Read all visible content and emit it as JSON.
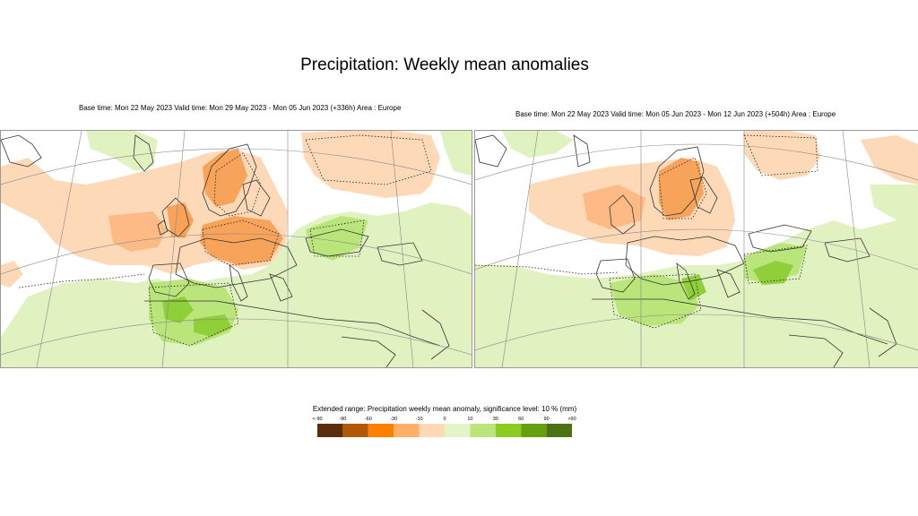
{
  "title": "Precipitation: Weekly mean anomalies",
  "maps": [
    {
      "subtitle": "Base time: Mon 22 May 2023 Valid time: Mon 29 May 2023 - Mon 05 Jun 2023 (+336h) Area : Europe"
    },
    {
      "subtitle": "Base time: Mon 22 May 2023 Valid time: Mon 05 Jun 2023 - Mon 12 Jun 2023 (+504h) Area : Europe"
    }
  ],
  "legend": {
    "title": "Extended range: Precipitation weekly mean anomaly, significance level: 10 % (mm)",
    "ticks": [
      "<-90",
      "-90",
      "-60",
      "-30",
      "-10",
      "0",
      "10",
      "30",
      "60",
      "90",
      ">90"
    ],
    "colors": [
      "#5c2d0b",
      "#b35806",
      "#ff8000",
      "#ffb066",
      "#fdd9b8",
      "#e3f4c8",
      "#b9e57a",
      "#8ccc1e",
      "#66a00c",
      "#4d7213"
    ]
  },
  "colors": {
    "dry_light": "#fdd9b8",
    "dry_medium": "#fdba85",
    "dry_strong": "#f7a35a",
    "wet_light": "#dff2c0",
    "wet_medium": "#b9e57a",
    "wet_strong": "#8fd03a",
    "coast": "#333333",
    "grid": "#888888"
  }
}
